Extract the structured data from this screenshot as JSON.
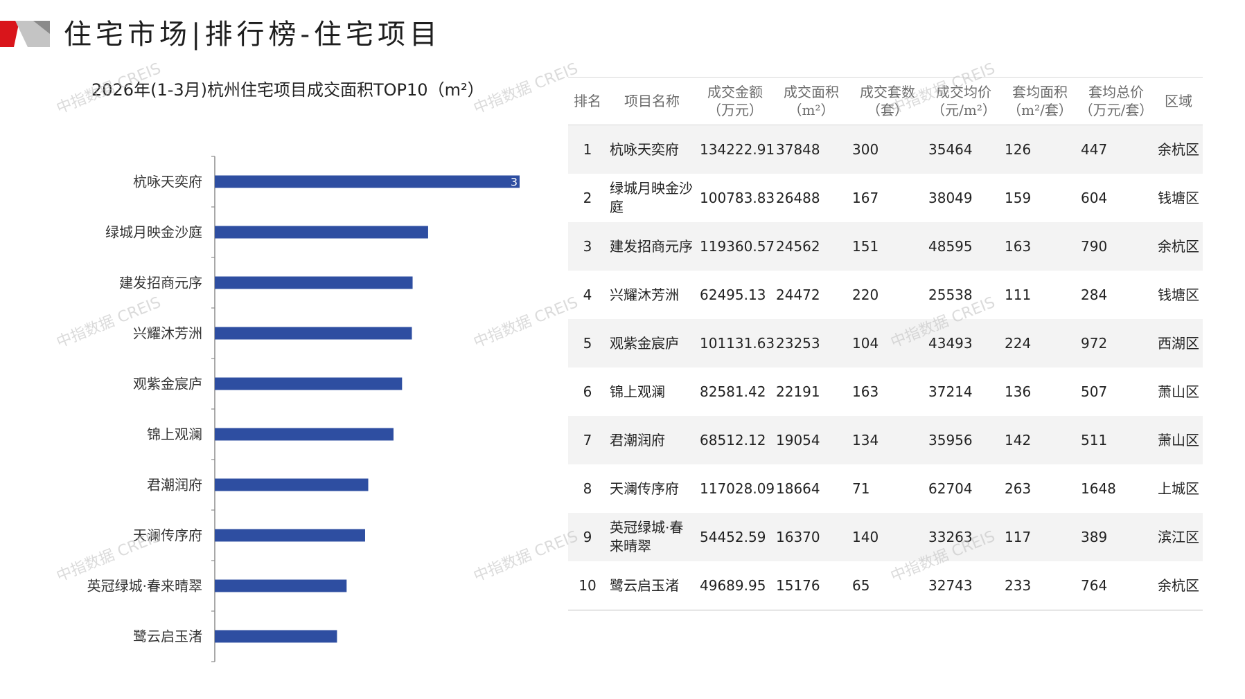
{
  "page": {
    "title": "住宅市场|排行榜-住宅项目",
    "watermark": "中指数据 CREIS"
  },
  "colors": {
    "bar": "#2e4ea1",
    "accent_red": "#d9151b",
    "accent_gray": "#bdbdbd"
  },
  "chart_data": {
    "type": "bar",
    "orientation": "horizontal",
    "title": "2026年(1-3月)杭州住宅项目成交面积TOP10（m²）",
    "categories": [
      "杭咏天奕府",
      "绿城月映金沙庭",
      "建发招商元序",
      "兴耀沐芳洲",
      "观紫金宸庐",
      "锦上观澜",
      "君潮润府",
      "天澜传序府",
      "英冠绿城·春来晴翠",
      "鹭云启玉渚"
    ],
    "values": [
      37848,
      26488,
      24562,
      24472,
      23253,
      22191,
      19054,
      18664,
      16370,
      15176
    ],
    "visible_data_labels": [
      "3"
    ],
    "xlim": [
      0,
      37848
    ],
    "grid": false,
    "legend": "none"
  },
  "table": {
    "headers": [
      "排名",
      "项目名称",
      "成交金额\n（万元）",
      "成交面积\n（m²）",
      "成交套数\n（套）",
      "成交均价\n（元/m²）",
      "套均面积\n（m²/套）",
      "套均总价\n（万元/套）",
      "区域"
    ],
    "rows": [
      [
        "1",
        "杭咏天奕府",
        "134222.91",
        "37848",
        "300",
        "35464",
        "126",
        "447",
        "余杭区"
      ],
      [
        "2",
        "绿城月映金沙庭",
        "100783.83",
        "26488",
        "167",
        "38049",
        "159",
        "604",
        "钱塘区"
      ],
      [
        "3",
        "建发招商元序",
        "119360.57",
        "24562",
        "151",
        "48595",
        "163",
        "790",
        "余杭区"
      ],
      [
        "4",
        "兴耀沐芳洲",
        "62495.13",
        "24472",
        "220",
        "25538",
        "111",
        "284",
        "钱塘区"
      ],
      [
        "5",
        "观紫金宸庐",
        "101131.63",
        "23253",
        "104",
        "43493",
        "224",
        "972",
        "西湖区"
      ],
      [
        "6",
        "锦上观澜",
        "82581.42",
        "22191",
        "163",
        "37214",
        "136",
        "507",
        "萧山区"
      ],
      [
        "7",
        "君潮润府",
        "68512.12",
        "19054",
        "134",
        "35956",
        "142",
        "511",
        "萧山区"
      ],
      [
        "8",
        "天澜传序府",
        "117028.09",
        "18664",
        "71",
        "62704",
        "263",
        "1648",
        "上城区"
      ],
      [
        "9",
        "英冠绿城·春来晴翠",
        "54452.59",
        "16370",
        "140",
        "33263",
        "117",
        "389",
        "滨江区"
      ],
      [
        "10",
        "鹭云启玉渚",
        "49689.95",
        "15176",
        "65",
        "32743",
        "233",
        "764",
        "余杭区"
      ]
    ]
  }
}
